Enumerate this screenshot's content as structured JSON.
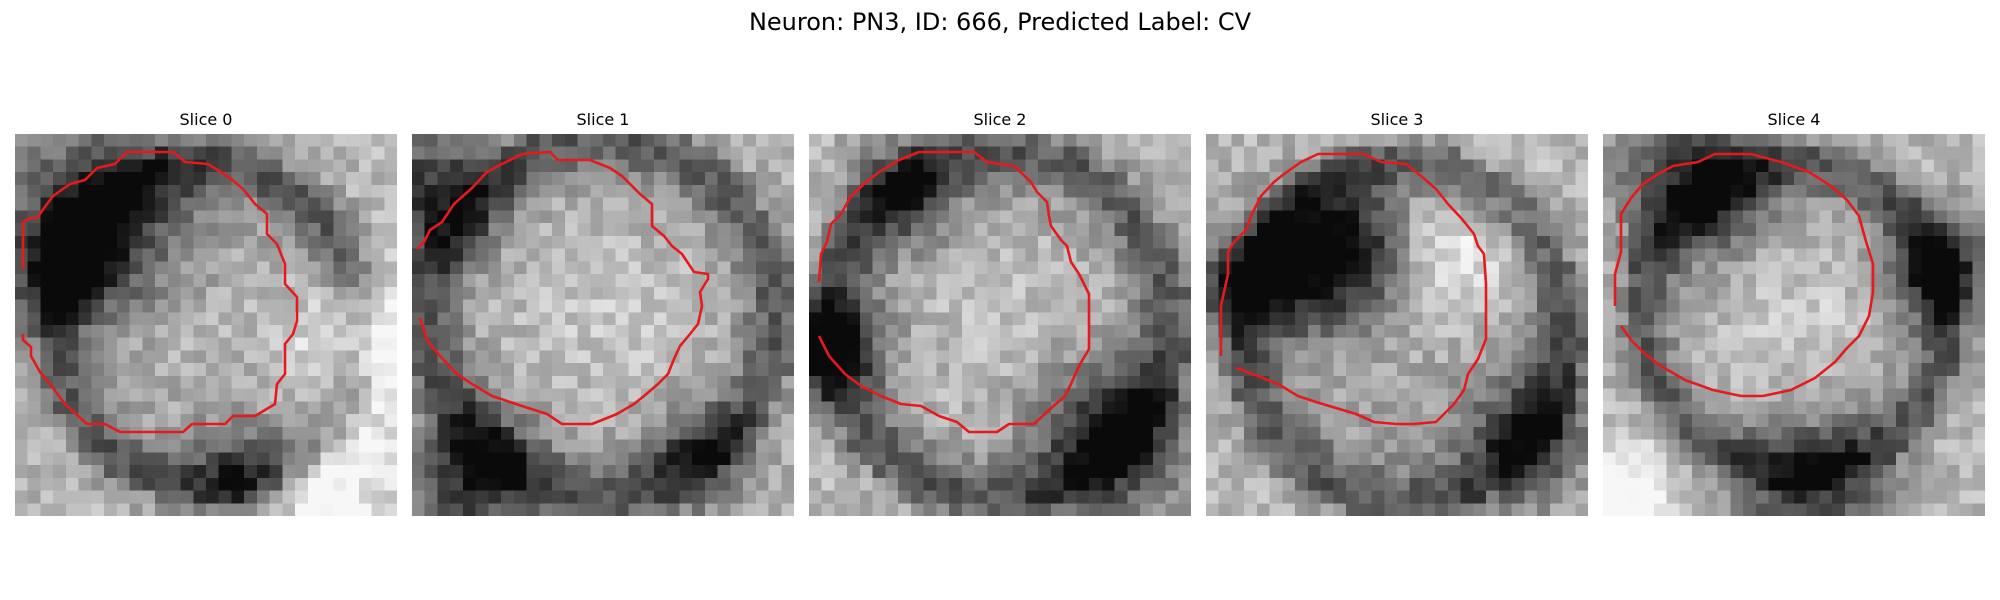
{
  "figure": {
    "title": "Neuron: PN3, ID: 666, Predicted Label: CV"
  },
  "panels": [
    {
      "title": "Slice 0"
    },
    {
      "title": "Slice 1"
    },
    {
      "title": "Slice 2"
    },
    {
      "title": "Slice 3"
    },
    {
      "title": "Slice 4"
    }
  ],
  "colors": {
    "contour": "#e41a1c",
    "background": "#ffffff"
  }
}
